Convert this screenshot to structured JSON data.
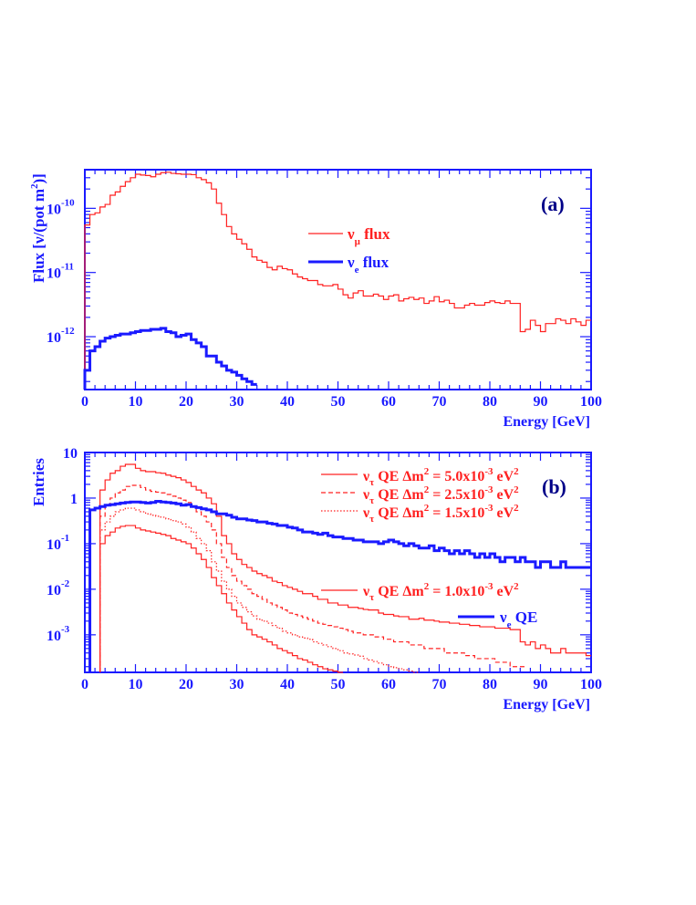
{
  "colors": {
    "axis": "#1a1aff",
    "red": "#ff2020",
    "blue": "#1a1aff",
    "label": "#000088"
  },
  "chart_data": [
    {
      "type": "line",
      "panel_label": "(a)",
      "xlabel": "Energy [GeV]",
      "ylabel": "Flux [ν/(pot m²)]",
      "ylabel_parts": {
        "pre": "Flux [ν/(pot m",
        "sup": "2",
        "post": ")]"
      },
      "xlim": [
        0,
        100
      ],
      "ylim": [
        1.5e-13,
        4e-10
      ],
      "log_y": true,
      "xticks": [
        "0",
        "10",
        "20",
        "30",
        "40",
        "50",
        "60",
        "70",
        "80",
        "90",
        "100"
      ],
      "yticks": [
        {
          "value": 1e-10,
          "base": "10",
          "exp": "-10"
        },
        {
          "value": 1e-11,
          "base": "10",
          "exp": "-11"
        },
        {
          "value": 1e-12,
          "base": "10",
          "exp": "-12"
        }
      ],
      "legend": [
        {
          "nu": "ν",
          "sub": "μ",
          "rest": " flux"
        },
        {
          "nu": "ν",
          "sub": "e",
          "rest": " flux"
        }
      ],
      "series": [
        {
          "style": "red-solid",
          "bin_start": 0,
          "bin_width": 1,
          "values": [
            5.5e-11,
            8e-11,
            8.5e-11,
            1.05e-10,
            1.15e-10,
            1.6e-10,
            1.8e-10,
            2.2e-10,
            2.6e-10,
            3e-10,
            3.4e-10,
            3.3e-10,
            3.25e-10,
            3.1e-10,
            3.4e-10,
            3.6e-10,
            3.65e-10,
            3.5e-10,
            3.45e-10,
            3.4e-10,
            3.4e-10,
            3.35e-10,
            3e-10,
            2.8e-10,
            2.5e-10,
            2e-10,
            1.2e-10,
            8e-11,
            5.2e-11,
            4e-11,
            3.3e-11,
            2.8e-11,
            2.3e-11,
            1.75e-11,
            1.55e-11,
            1.45e-11,
            1.2e-11,
            1.1e-11,
            1.25e-11,
            1.15e-11,
            1.1e-11,
            9.5e-12,
            8.5e-12,
            8e-12,
            7.5e-12,
            7.5e-12,
            6.5e-12,
            6.2e-12,
            6.2e-12,
            6.5e-12,
            5.5e-12,
            4.5e-12,
            4e-12,
            4.8e-12,
            5.2e-12,
            4.3e-12,
            4.3e-12,
            4.6e-12,
            4.3e-12,
            3.8e-12,
            4.3e-12,
            4.5e-12,
            3.6e-12,
            3.9e-12,
            4.1e-12,
            3.8e-12,
            4e-12,
            3.3e-12,
            3.6e-12,
            4.2e-12,
            3.5e-12,
            3.7e-12,
            3.3e-12,
            2.8e-12,
            2.8e-12,
            3.1e-12,
            3.3e-12,
            3.1e-12,
            3.1e-12,
            3.4e-12,
            3.6e-12,
            3.4e-12,
            3.3e-12,
            3.6e-12,
            3.3e-12,
            3.3e-12,
            1.2e-12,
            1.3e-12,
            1.8e-12,
            1.5e-12,
            1.2e-12,
            1.6e-12,
            1.6e-12,
            1.9e-12,
            1.8e-12,
            1.6e-12,
            1.9e-12,
            1.7e-12,
            1.5e-12,
            1.8e-12
          ]
        },
        {
          "style": "blue-thick",
          "bin_start": 0,
          "bin_width": 1,
          "values": [
            3e-13,
            6e-13,
            7e-13,
            8.5e-13,
            9.5e-13,
            1e-12,
            1.05e-12,
            1.1e-12,
            1.1e-12,
            1.15e-12,
            1.2e-12,
            1.25e-12,
            1.25e-12,
            1.3e-12,
            1.3e-12,
            1.35e-12,
            1.2e-12,
            1.15e-12,
            1e-12,
            1.05e-12,
            1.1e-12,
            9e-13,
            8e-13,
            7e-13,
            5e-13,
            5e-13,
            4e-13,
            3.5e-13,
            3e-13,
            2.8e-13,
            2.5e-13,
            2.2e-13,
            2e-13,
            1.8e-13
          ]
        }
      ]
    },
    {
      "type": "line",
      "panel_label": "(b)",
      "xlabel": "Energy [GeV]",
      "ylabel": "Entries",
      "xlim": [
        0,
        100
      ],
      "ylim": [
        0.00015,
        10
      ],
      "log_y": true,
      "xticks": [
        "0",
        "10",
        "20",
        "30",
        "40",
        "50",
        "60",
        "70",
        "80",
        "90",
        "100"
      ],
      "yticks": [
        {
          "value": 10,
          "base": "10",
          "exp": ""
        },
        {
          "value": 1,
          "base": "1",
          "exp": ""
        },
        {
          "value": 0.1,
          "base": "10",
          "exp": "-1"
        },
        {
          "value": 0.01,
          "base": "10",
          "exp": "-2"
        },
        {
          "value": 0.001,
          "base": "10",
          "exp": "-3"
        }
      ],
      "legend": [
        {
          "nu": "ν",
          "sub": "τ",
          "rest": " QE Δm",
          "sup1": "2",
          "mid": " = 5.0x10",
          "sup2": "-3",
          "tail": " eV",
          "sup3": "2"
        },
        {
          "nu": "ν",
          "sub": "τ",
          "rest": " QE Δm",
          "sup1": "2",
          "mid": " = 2.5x10",
          "sup2": "-3",
          "tail": " eV",
          "sup3": "2"
        },
        {
          "nu": "ν",
          "sub": "τ",
          "rest": " QE Δm",
          "sup1": "2",
          "mid": " = 1.5x10",
          "sup2": "-3",
          "tail": " eV",
          "sup3": "2"
        },
        {
          "nu": "ν",
          "sub": "τ",
          "rest": " QE Δm",
          "sup1": "2",
          "mid": " = 1.0x10",
          "sup2": "-3",
          "tail": " eV",
          "sup3": "2"
        },
        {
          "nu": "ν",
          "sub": "e",
          "rest": " QE"
        }
      ],
      "series": [
        {
          "style": "red-solid",
          "bin_start": 3,
          "bin_width": 1,
          "values": [
            1.5,
            2.5,
            3.5,
            4,
            5,
            5.5,
            5.5,
            4.5,
            4,
            3.8,
            3.8,
            3.6,
            3.5,
            3.2,
            3,
            2.8,
            2.5,
            2.2,
            1.8,
            1.5,
            1.3,
            1.0,
            0.75,
            0.4,
            0.15,
            0.1,
            0.06,
            0.045,
            0.035,
            0.03,
            0.025,
            0.022,
            0.02,
            0.018,
            0.015,
            0.014,
            0.012,
            0.011,
            0.01,
            0.009,
            0.008,
            0.008,
            0.007,
            0.006,
            0.006,
            0.005,
            0.005,
            0.0045,
            0.0045,
            0.004,
            0.004,
            0.0038,
            0.0036,
            0.0035,
            0.0035,
            0.003,
            0.0028,
            0.0028,
            0.0026,
            0.0025,
            0.0025,
            0.0022,
            0.0022,
            0.0023,
            0.0021,
            0.0021,
            0.002,
            0.0019,
            0.0019,
            0.0018,
            0.0018,
            0.0017,
            0.0017,
            0.0016,
            0.0016,
            0.0015,
            0.0015,
            0.0015,
            0.0014,
            0.0014,
            0.0014,
            0.0013,
            0.0013,
            0.0007,
            0.0006,
            0.0007,
            0.0005,
            0.0006,
            0.0005,
            0.0004,
            0.0004,
            0.0005,
            0.0004,
            0.0004,
            0.0004,
            0.0004,
            0.00035
          ]
        },
        {
          "style": "red-dashed",
          "bin_start": 3,
          "bin_width": 1,
          "values": [
            0.4,
            0.7,
            1.0,
            1.3,
            1.5,
            1.8,
            1.9,
            1.9,
            1.7,
            1.5,
            1.4,
            1.35,
            1.3,
            1.2,
            1.1,
            1.0,
            0.9,
            0.8,
            0.65,
            0.5,
            0.4,
            0.3,
            0.2,
            0.1,
            0.05,
            0.03,
            0.02,
            0.015,
            0.012,
            0.01,
            0.008,
            0.007,
            0.006,
            0.005,
            0.0045,
            0.004,
            0.0035,
            0.003,
            0.0028,
            0.0026,
            0.0024,
            0.0022,
            0.002,
            0.0018,
            0.0017,
            0.0016,
            0.0015,
            0.0014,
            0.0013,
            0.0012,
            0.0011,
            0.0011,
            0.001,
            0.001,
            0.0009,
            0.0009,
            0.0008,
            0.0008,
            0.0007,
            0.0007,
            0.0007,
            0.0006,
            0.0006,
            0.0006,
            0.0005,
            0.0005,
            0.0005,
            0.0005,
            0.0004,
            0.0004,
            0.0004,
            0.0004,
            0.00035,
            0.00035,
            0.0003,
            0.0003,
            0.0003,
            0.0003,
            0.00025,
            0.00025,
            0.00025,
            0.0002,
            0.0002,
            0.0002
          ]
        },
        {
          "style": "red-dotted",
          "bin_start": 3,
          "bin_width": 1,
          "values": [
            0.2,
            0.3,
            0.4,
            0.5,
            0.55,
            0.6,
            0.6,
            0.55,
            0.5,
            0.45,
            0.42,
            0.4,
            0.38,
            0.35,
            0.32,
            0.3,
            0.27,
            0.23,
            0.18,
            0.13,
            0.1,
            0.07,
            0.04,
            0.025,
            0.015,
            0.01,
            0.007,
            0.005,
            0.004,
            0.0032,
            0.0026,
            0.0022,
            0.002,
            0.0018,
            0.0016,
            0.0014,
            0.0012,
            0.0011,
            0.001,
            0.0009,
            0.00085,
            0.0008,
            0.0007,
            0.00065,
            0.0006,
            0.00055,
            0.0005,
            0.00045,
            0.0004,
            0.00038,
            0.00036,
            0.00034,
            0.0003,
            0.00028,
            0.00026,
            0.00024,
            0.00022,
            0.0002,
            0.00019,
            0.00018,
            0.00017,
            0.00016,
            0.00015
          ]
        },
        {
          "style": "red-solid",
          "bin_start": 3,
          "bin_width": 1,
          "values": [
            0.1,
            0.15,
            0.18,
            0.22,
            0.24,
            0.25,
            0.25,
            0.22,
            0.2,
            0.19,
            0.18,
            0.17,
            0.16,
            0.15,
            0.13,
            0.12,
            0.11,
            0.1,
            0.08,
            0.06,
            0.045,
            0.03,
            0.018,
            0.012,
            0.008,
            0.005,
            0.0035,
            0.0025,
            0.0018,
            0.0013,
            0.001,
            0.0009,
            0.0008,
            0.0007,
            0.0006,
            0.0005,
            0.00045,
            0.0004,
            0.00035,
            0.0003,
            0.00028,
            0.00025,
            0.00022,
            0.0002,
            0.00018,
            0.00017,
            0.00016,
            0.00015
          ]
        },
        {
          "style": "blue-thick",
          "bin_start": 1,
          "bin_width": 1,
          "values": [
            0.55,
            0.6,
            0.65,
            0.7,
            0.72,
            0.75,
            0.78,
            0.8,
            0.82,
            0.82,
            0.8,
            0.78,
            0.8,
            0.85,
            0.82,
            0.8,
            0.78,
            0.75,
            0.7,
            0.72,
            0.65,
            0.62,
            0.58,
            0.55,
            0.5,
            0.45,
            0.45,
            0.42,
            0.38,
            0.35,
            0.35,
            0.33,
            0.32,
            0.3,
            0.3,
            0.28,
            0.27,
            0.25,
            0.25,
            0.23,
            0.22,
            0.2,
            0.18,
            0.18,
            0.17,
            0.16,
            0.17,
            0.15,
            0.14,
            0.14,
            0.13,
            0.13,
            0.12,
            0.12,
            0.11,
            0.11,
            0.11,
            0.1,
            0.11,
            0.12,
            0.11,
            0.1,
            0.09,
            0.1,
            0.09,
            0.08,
            0.08,
            0.09,
            0.07,
            0.08,
            0.07,
            0.06,
            0.07,
            0.06,
            0.07,
            0.06,
            0.05,
            0.06,
            0.05,
            0.06,
            0.05,
            0.04,
            0.05,
            0.05,
            0.04,
            0.05,
            0.04,
            0.04,
            0.03,
            0.04,
            0.04,
            0.03,
            0.03,
            0.04,
            0.03,
            0.03,
            0.03,
            0.03,
            0.03
          ]
        }
      ]
    }
  ]
}
